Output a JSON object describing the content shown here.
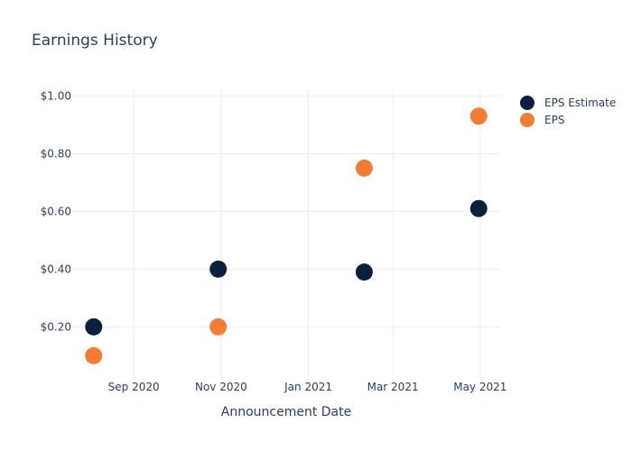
{
  "colors": {
    "eps_estimate": "#0b1f3f",
    "eps": "#f47c34",
    "text": "#2a3f5f",
    "grid": "#eeeeee"
  },
  "chart_data": {
    "type": "scatter",
    "title": "Earnings History",
    "xlabel": "Announcement Date",
    "ylabel": "",
    "x_ticks": [
      "Sep 2020",
      "Nov 2020",
      "Jan 2021",
      "Mar 2021",
      "May 2021"
    ],
    "y_ticks": [
      "$0.20",
      "$0.40",
      "$0.60",
      "$0.80",
      "$1.00"
    ],
    "ylim": [
      0.02,
      1.02
    ],
    "xlim": [
      "2020-07-20",
      "2021-05-15"
    ],
    "grid": true,
    "legend_position": "top-right",
    "series": [
      {
        "name": "EPS Estimate",
        "points": [
          {
            "x": "2020-08-04",
            "y": 0.2
          },
          {
            "x": "2020-10-30",
            "y": 0.4
          },
          {
            "x": "2021-02-09",
            "y": 0.39
          },
          {
            "x": "2021-04-30",
            "y": 0.61
          }
        ]
      },
      {
        "name": "EPS",
        "points": [
          {
            "x": "2020-08-04",
            "y": 0.1
          },
          {
            "x": "2020-10-30",
            "y": 0.2
          },
          {
            "x": "2021-02-09",
            "y": 0.75
          },
          {
            "x": "2021-04-30",
            "y": 0.93
          }
        ]
      }
    ]
  }
}
